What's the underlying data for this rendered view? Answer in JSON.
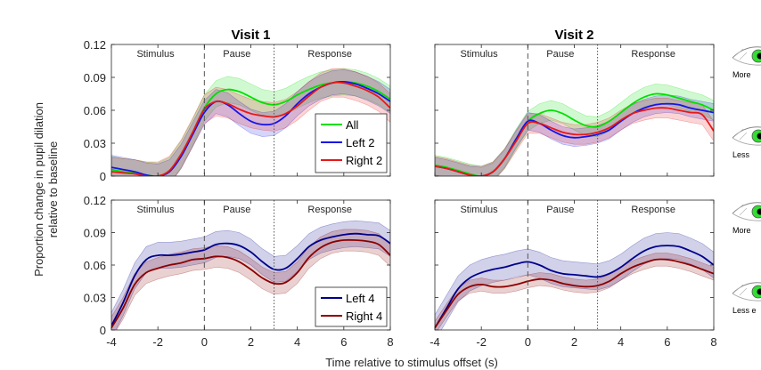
{
  "chart_data": [
    {
      "type": "line",
      "title": "Visit 1",
      "phase_labels": [
        "Stimulus",
        "Pause",
        "Response"
      ],
      "xlim": [
        -4,
        8
      ],
      "ylim": [
        0,
        0.12
      ],
      "xticks": [],
      "yticks": [
        "0.12",
        "0.09",
        "0.06",
        "0.03",
        "0"
      ],
      "x": [
        -4,
        -3.5,
        -3,
        -2.5,
        -2,
        -1.5,
        -1,
        -0.5,
        0,
        0.5,
        1,
        1.5,
        2,
        2.5,
        3,
        3.5,
        4,
        4.5,
        5,
        5.5,
        6,
        6.5,
        7,
        7.5,
        8
      ],
      "legend_location": "lower-right",
      "series": [
        {
          "name": "All",
          "color": "#00e000",
          "band": 0.012,
          "values": [
            0.006,
            0.004,
            0.003,
            0.001,
            0.0,
            0.005,
            0.02,
            0.04,
            0.062,
            0.075,
            0.079,
            0.077,
            0.072,
            0.067,
            0.065,
            0.068,
            0.074,
            0.079,
            0.083,
            0.085,
            0.086,
            0.085,
            0.082,
            0.077,
            0.07
          ]
        },
        {
          "name": "Left 2",
          "color": "#1515e6",
          "band": 0.011,
          "values": [
            0.008,
            0.006,
            0.004,
            0.001,
            0.0,
            0.004,
            0.018,
            0.038,
            0.058,
            0.068,
            0.065,
            0.057,
            0.05,
            0.047,
            0.048,
            0.055,
            0.066,
            0.075,
            0.081,
            0.085,
            0.086,
            0.084,
            0.08,
            0.075,
            0.068
          ]
        },
        {
          "name": "Right 2",
          "color": "#e81818",
          "band": 0.013,
          "values": [
            0.004,
            0.003,
            0.002,
            0.0,
            0.0,
            0.005,
            0.02,
            0.04,
            0.061,
            0.068,
            0.066,
            0.061,
            0.057,
            0.055,
            0.054,
            0.057,
            0.064,
            0.073,
            0.081,
            0.085,
            0.085,
            0.082,
            0.078,
            0.072,
            0.062
          ]
        }
      ]
    },
    {
      "type": "line",
      "title": "Visit 2",
      "phase_labels": [
        "Stimulus",
        "Pause",
        "Response"
      ],
      "xlim": [
        -4,
        8
      ],
      "ylim": [
        0,
        0.12
      ],
      "xticks": [],
      "yticks": [],
      "x": [
        -4,
        -3.5,
        -3,
        -2.5,
        -2,
        -1.5,
        -1,
        -0.5,
        0,
        0.5,
        1,
        1.5,
        2,
        2.5,
        3,
        3.5,
        4,
        4.5,
        5,
        5.5,
        6,
        6.5,
        7,
        7.5,
        8
      ],
      "series": [
        {
          "name": "All",
          "color": "#00e000",
          "band": 0.009,
          "values": [
            0.01,
            0.008,
            0.005,
            0.002,
            0.0,
            0.004,
            0.016,
            0.034,
            0.05,
            0.057,
            0.06,
            0.057,
            0.051,
            0.046,
            0.045,
            0.05,
            0.058,
            0.066,
            0.072,
            0.075,
            0.074,
            0.071,
            0.068,
            0.065,
            0.06
          ]
        },
        {
          "name": "Left 2",
          "color": "#1515e6",
          "band": 0.008,
          "values": [
            0.009,
            0.007,
            0.004,
            0.001,
            0.0,
            0.004,
            0.016,
            0.034,
            0.05,
            0.048,
            0.042,
            0.037,
            0.035,
            0.036,
            0.038,
            0.042,
            0.05,
            0.057,
            0.062,
            0.065,
            0.066,
            0.065,
            0.062,
            0.06,
            0.058
          ]
        },
        {
          "name": "Right 2",
          "color": "#e81818",
          "band": 0.009,
          "values": [
            0.009,
            0.007,
            0.004,
            0.001,
            0.0,
            0.004,
            0.016,
            0.032,
            0.048,
            0.048,
            0.044,
            0.04,
            0.038,
            0.038,
            0.04,
            0.044,
            0.051,
            0.057,
            0.06,
            0.062,
            0.062,
            0.06,
            0.058,
            0.056,
            0.041
          ]
        }
      ]
    },
    {
      "type": "line",
      "title": "",
      "phase_labels": [
        "Stimulus",
        "Pause",
        "Response"
      ],
      "xlim": [
        -4,
        8
      ],
      "ylim": [
        0,
        0.12
      ],
      "xticks": [
        "-4",
        "-2",
        "0",
        "2",
        "4",
        "6",
        "8"
      ],
      "yticks": [
        "0.12",
        "0.09",
        "0.06",
        "0.03",
        "0"
      ],
      "x": [
        -4,
        -3.5,
        -3,
        -2.5,
        -2,
        -1.5,
        -1,
        -0.5,
        0,
        0.5,
        1,
        1.5,
        2,
        2.5,
        3,
        3.5,
        4,
        4.5,
        5,
        5.5,
        6,
        6.5,
        7,
        7.5,
        8
      ],
      "legend_location": "lower-right",
      "series": [
        {
          "name": "Left 4",
          "color": "#00008b",
          "band": 0.012,
          "values": [
            0.004,
            0.025,
            0.05,
            0.065,
            0.069,
            0.069,
            0.07,
            0.072,
            0.074,
            0.079,
            0.08,
            0.078,
            0.072,
            0.063,
            0.056,
            0.057,
            0.066,
            0.077,
            0.083,
            0.086,
            0.088,
            0.089,
            0.088,
            0.087,
            0.08
          ]
        },
        {
          "name": "Right 4",
          "color": "#8b0000",
          "band": 0.01,
          "values": [
            0.002,
            0.02,
            0.042,
            0.053,
            0.057,
            0.06,
            0.062,
            0.065,
            0.066,
            0.068,
            0.067,
            0.063,
            0.056,
            0.048,
            0.043,
            0.044,
            0.053,
            0.067,
            0.076,
            0.081,
            0.083,
            0.083,
            0.082,
            0.079,
            0.069
          ]
        }
      ]
    },
    {
      "type": "line",
      "title": "",
      "phase_labels": [
        "Stimulus",
        "Pause",
        "Response"
      ],
      "xlim": [
        -4,
        8
      ],
      "ylim": [
        0,
        0.12
      ],
      "xticks": [
        "-4",
        "-2",
        "0",
        "2",
        "4",
        "6",
        "8"
      ],
      "yticks": [],
      "x": [
        -4,
        -3.5,
        -3,
        -2.5,
        -2,
        -1.5,
        -1,
        -0.5,
        0,
        0.5,
        1,
        1.5,
        2,
        2.5,
        3,
        3.5,
        4,
        4.5,
        5,
        5.5,
        6,
        6.5,
        7,
        7.5,
        8
      ],
      "series": [
        {
          "name": "Left 4",
          "color": "#00008b",
          "band": 0.012,
          "values": [
            0.002,
            0.02,
            0.038,
            0.048,
            0.053,
            0.056,
            0.058,
            0.061,
            0.063,
            0.06,
            0.055,
            0.052,
            0.051,
            0.05,
            0.049,
            0.052,
            0.058,
            0.066,
            0.073,
            0.077,
            0.078,
            0.077,
            0.073,
            0.068,
            0.06
          ]
        },
        {
          "name": "Right 4",
          "color": "#8b0000",
          "band": 0.006,
          "values": [
            0.002,
            0.018,
            0.033,
            0.04,
            0.042,
            0.04,
            0.04,
            0.042,
            0.045,
            0.047,
            0.046,
            0.043,
            0.041,
            0.04,
            0.041,
            0.045,
            0.052,
            0.058,
            0.062,
            0.065,
            0.065,
            0.063,
            0.06,
            0.056,
            0.052
          ]
        }
      ]
    }
  ],
  "figure": {
    "ylabel_line1": "Proportion change in pupil dilation",
    "ylabel_line2": "relative to baseline",
    "xlabel": "Time relative to stimulus offset (s)",
    "side_labels": [
      "More",
      "Less",
      "More",
      "Less e"
    ],
    "eye_icon": "eye-icon",
    "eye_color": "#33dd33"
  }
}
